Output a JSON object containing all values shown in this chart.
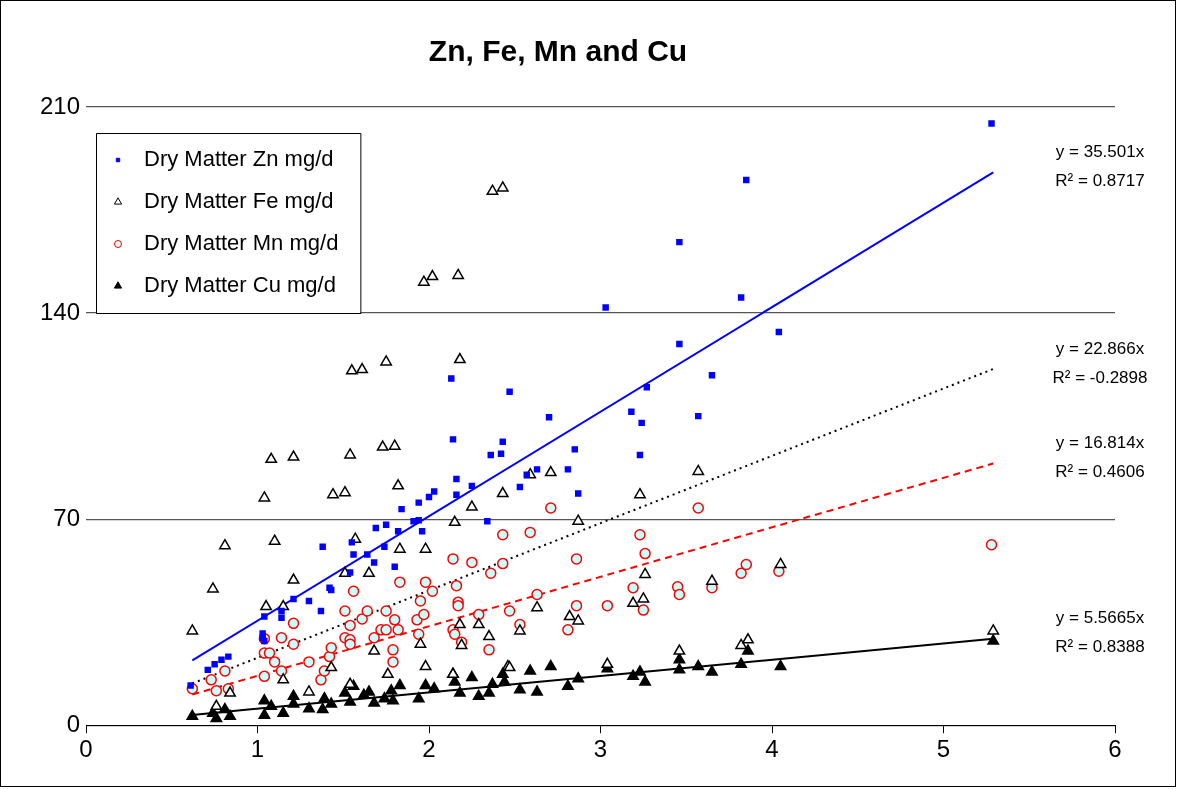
{
  "chart_data": {
    "type": "scatter",
    "title": "Zn, Fe, Mn and Cu",
    "xlim": [
      0,
      6
    ],
    "xticks": [
      0,
      1,
      2,
      3,
      4,
      5,
      6
    ],
    "ylim": [
      0,
      210
    ],
    "yticks": [
      0,
      70,
      140,
      210
    ],
    "grid": "y",
    "legend": "top left",
    "series": [
      {
        "name": "Dry Matter Zn mg/d",
        "color": "#0000ff",
        "marker": "square",
        "x": [
          0.61,
          0.71,
          0.75,
          0.79,
          0.83,
          1.03,
          1.03,
          1.04,
          1.04,
          1.14,
          1.14,
          1.21,
          1.3,
          1.37,
          1.38,
          1.42,
          1.43,
          1.54,
          1.55,
          1.56,
          1.64,
          1.68,
          1.69,
          1.74,
          1.75,
          1.8,
          1.82,
          1.84,
          1.91,
          1.94,
          1.94,
          1.96,
          2.0,
          2.03,
          2.13,
          2.14,
          2.16,
          2.16,
          2.25,
          2.34,
          2.36,
          2.42,
          2.43,
          2.47,
          2.53,
          2.57,
          2.63,
          2.7,
          2.81,
          2.85,
          2.87,
          3.03,
          3.18,
          3.23,
          3.24,
          3.27,
          3.46,
          3.46,
          3.57,
          3.65,
          3.82,
          3.85,
          4.04,
          5.28
        ],
        "values": [
          13.5,
          18.8,
          20.7,
          22.2,
          23.3,
          29.7,
          31.2,
          28.6,
          36.9,
          38.8,
          36.5,
          42.9,
          42.2,
          38.8,
          60.6,
          46.7,
          45.9,
          51.9,
          62.1,
          58.0,
          58.0,
          55.3,
          67.0,
          60.6,
          68.1,
          53.8,
          65.9,
          73.4,
          69.3,
          75.6,
          69.6,
          65.9,
          77.5,
          79.4,
          117.8,
          97.1,
          83.6,
          78.3,
          81.3,
          69.3,
          91.8,
          92.2,
          96.3,
          113.3,
          80.9,
          85.1,
          86.9,
          104.6,
          86.9,
          93.7,
          78.7,
          141.9,
          106.5,
          91.8,
          102.7,
          114.8,
          164.1,
          129.5,
          105.0,
          118.9,
          145.3,
          185.2,
          133.6,
          204.4
        ]
      },
      {
        "name": "Dry Matter Fe mg/d",
        "color": "#000000",
        "marker": "triangle",
        "x": [
          0.62,
          0.74,
          0.81,
          0.76,
          0.84,
          1.04,
          1.08,
          1.1,
          1.05,
          1.15,
          1.21,
          1.21,
          1.15,
          1.3,
          1.44,
          1.51,
          1.54,
          1.55,
          1.61,
          1.57,
          1.51,
          1.65,
          1.75,
          1.73,
          1.8,
          1.82,
          1.83,
          1.98,
          1.97,
          2.02,
          2.17,
          2.18,
          2.15,
          2.25,
          2.43,
          2.37,
          2.43,
          1.68,
          1.95,
          1.98,
          1.76,
          1.43,
          1.54,
          2.18,
          2.29,
          2.35,
          2.19,
          2.14,
          2.46,
          2.59,
          2.71,
          2.87,
          3.23,
          3.57,
          3.26,
          2.63,
          2.82,
          2.87,
          2.53,
          3.19,
          3.25,
          3.65,
          4.05,
          2.47,
          3.04,
          3.46,
          3.82,
          3.86,
          5.29
        ],
        "values": [
          32.0,
          46.3,
          61.0,
          6.4,
          10.9,
          77.2,
          90.3,
          62.5,
          40.3,
          40.3,
          91.1,
          49.3,
          15.4,
          11.3,
          78.3,
          79.0,
          91.8,
          120.4,
          120.8,
          63.2,
          51.6,
          51.6,
          123.4,
          94.5,
          94.8,
          81.3,
          59.8,
          59.8,
          150.5,
          152.4,
          152.8,
          124.2,
          68.9,
          74.1,
          78.7,
          181.4,
          182.5,
          25.2,
          27.5,
          19.9,
          17.3,
          19.6,
          13.9,
          34.2,
          34.2,
          30.1,
          27.1,
          17.3,
          19.9,
          85.1,
          85.8,
          69.3,
          78.3,
          86.2,
          51.2,
          39.9,
          36.9,
          35.4,
          32.0,
          41.4,
          42.9,
          48.9,
          54.6,
          19.6,
          20.7,
          25.2,
          27.1,
          29.0,
          32.0
        ]
      },
      {
        "name": "Dry Matter Mn mg/d",
        "color": "#ff0000",
        "marker": "circle",
        "x": [
          0.62,
          0.73,
          0.76,
          0.81,
          0.83,
          1.04,
          1.04,
          1.04,
          1.07,
          1.1,
          1.14,
          1.14,
          1.21,
          1.21,
          1.3,
          1.37,
          1.39,
          1.42,
          1.43,
          1.51,
          1.51,
          1.54,
          1.54,
          1.54,
          1.56,
          1.61,
          1.64,
          1.68,
          1.72,
          1.75,
          1.75,
          1.79,
          1.79,
          1.8,
          1.82,
          1.83,
          1.93,
          1.94,
          1.95,
          1.97,
          1.98,
          2.02,
          2.14,
          2.14,
          2.15,
          2.16,
          2.17,
          2.17,
          2.19,
          2.25,
          2.29,
          2.35,
          2.36,
          2.43,
          2.43,
          2.47,
          2.59,
          2.53,
          2.63,
          2.71,
          2.81,
          2.86,
          2.86,
          3.04,
          3.19,
          3.23,
          3.26,
          3.25,
          3.45,
          3.46,
          3.57,
          3.65,
          3.82,
          3.85,
          4.04,
          5.28
        ],
        "values": [
          12.4,
          15.4,
          11.7,
          18.4,
          12.4,
          16.6,
          24.5,
          29.4,
          24.5,
          21.5,
          29.7,
          18.4,
          34.6,
          27.5,
          21.5,
          15.4,
          18.4,
          23.3,
          26.3,
          38.8,
          29.7,
          29.0,
          27.5,
          33.9,
          45.5,
          36.1,
          38.8,
          29.7,
          32.4,
          38.8,
          32.4,
          25.6,
          21.5,
          35.8,
          32.4,
          48.6,
          35.8,
          30.9,
          42.2,
          37.6,
          48.6,
          45.5,
          32.4,
          56.5,
          30.9,
          47.4,
          41.8,
          40.6,
          28.2,
          55.3,
          37.6,
          25.6,
          51.6,
          64.7,
          54.9,
          38.8,
          65.5,
          34.2,
          44.4,
          73.8,
          32.4,
          56.5,
          40.6,
          40.6,
          46.7,
          64.7,
          58.3,
          39.1,
          47.0,
          44.4,
          73.8,
          46.7,
          51.6,
          54.6,
          52.3,
          61.3
        ]
      },
      {
        "name": "Dry Matter Cu mg/d",
        "color": "#000000",
        "marker": "triangle",
        "x": [
          0.62,
          0.74,
          0.76,
          0.81,
          0.84,
          1.04,
          1.04,
          1.08,
          1.15,
          1.21,
          1.21,
          1.3,
          1.38,
          1.39,
          1.43,
          1.51,
          1.54,
          1.56,
          1.62,
          1.65,
          1.68,
          1.74,
          1.78,
          1.83,
          1.79,
          1.94,
          1.98,
          2.03,
          2.14,
          2.15,
          2.18,
          2.25,
          2.29,
          2.35,
          2.37,
          2.43,
          2.44,
          2.59,
          2.71,
          2.53,
          2.63,
          2.81,
          2.87,
          3.04,
          3.19,
          3.23,
          3.26,
          3.46,
          3.46,
          3.57,
          3.65,
          3.82,
          3.86,
          4.05,
          5.29
        ],
        "values": [
          3.0,
          4.1,
          2.3,
          5.3,
          3.0,
          8.3,
          3.4,
          6.4,
          4.1,
          9.8,
          7.2,
          5.6,
          5.3,
          9.0,
          7.2,
          10.9,
          7.9,
          13.2,
          10.2,
          11.3,
          7.5,
          9.0,
          11.7,
          13.5,
          8.3,
          9.0,
          13.5,
          12.4,
          17.3,
          14.7,
          10.9,
          16.2,
          9.8,
          10.9,
          13.9,
          17.3,
          14.7,
          18.4,
          19.9,
          12.0,
          11.3,
          13.2,
          15.8,
          19.2,
          16.6,
          18.1,
          14.7,
          22.2,
          18.8,
          19.9,
          18.1,
          20.7,
          25.2,
          19.9,
          28.6
        ]
      },
      {
        "type": "line",
        "color": "#0000ff",
        "line_style": "solid",
        "x": [
          0.62,
          5.29
        ],
        "values": [
          22.0,
          187.8
        ]
      },
      {
        "type": "line",
        "color": "#000000",
        "line_style": "dotted",
        "x": [
          0.62,
          5.29
        ],
        "values": [
          14.2,
          121.0
        ]
      },
      {
        "type": "line",
        "color": "#ff0000",
        "line_style": "dashed",
        "x": [
          0.62,
          5.29
        ],
        "values": [
          10.4,
          88.9
        ]
      },
      {
        "type": "line",
        "color": "#000000",
        "line_style": "solid",
        "x": [
          0.62,
          5.29
        ],
        "values": [
          3.5,
          29.4
        ]
      }
    ],
    "annotations": [
      "y = 35.501x",
      "R² = 0.8717",
      "y = 22.866x",
      "R² = -0.2898",
      "y = 16.814x",
      "R² = 0.4606",
      "y = 5.5665x",
      "R² = 0.8388"
    ]
  }
}
